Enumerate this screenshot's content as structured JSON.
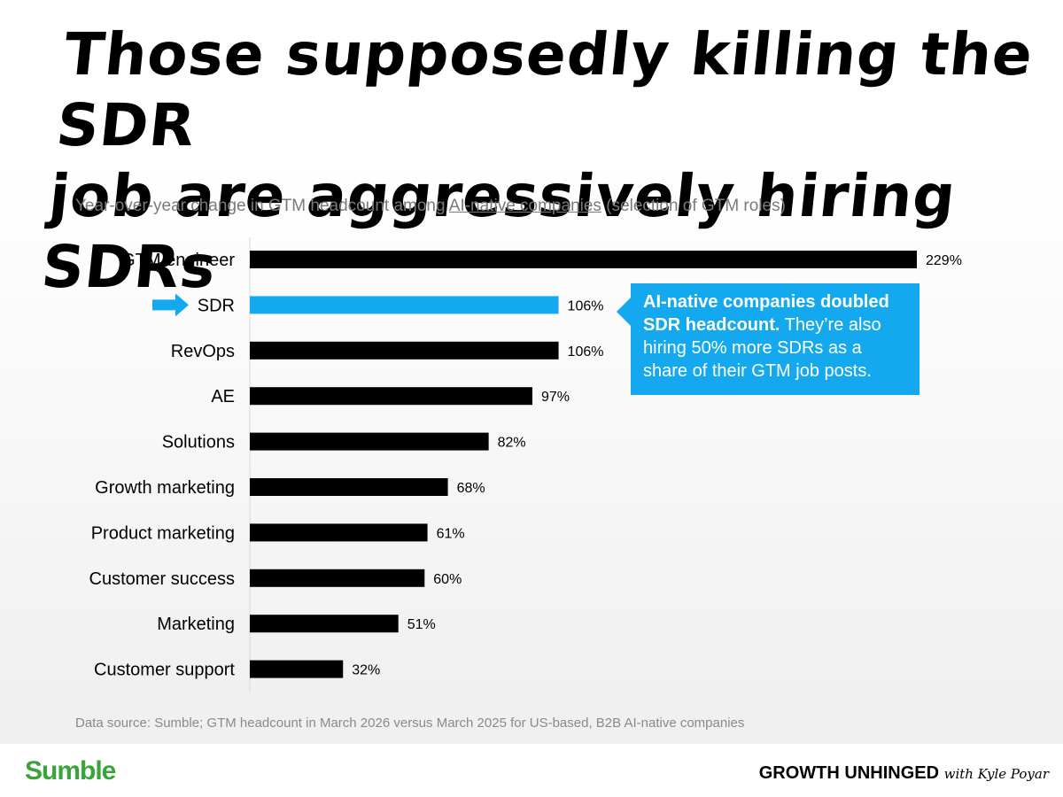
{
  "title_line1": "Those supposedly killing the SDR",
  "title_line2": "job are aggressively hiring SDRs",
  "subtitle": {
    "prefix": "Year-over-year change in GTM headcount among ",
    "link": "AI-native companies",
    "suffix": " (selection of GTM roles)"
  },
  "callout": {
    "bold": "AI-native companies doubled SDR headcount.",
    "text": " They’re also hiring 50% more SDRs as a share of their GTM job posts."
  },
  "source": "Data source: Sumble; GTM headcount in March 2026 versus March 2025 for US-based, B2B AI-native companies",
  "footer": {
    "left_logo": "Sumble",
    "right_logo_bold": "GROWTH UNHINGED",
    "right_logo_script": "with Kyle Poyar"
  },
  "colors": {
    "bar": "#000000",
    "highlight": "#14a9ee",
    "sumble_green": "#3aa33a"
  },
  "chart_data": {
    "type": "bar",
    "orientation": "horizontal",
    "categories": [
      "GTM engineer",
      "SDR",
      "RevOps",
      "AE",
      "Solutions",
      "Growth marketing",
      "Product marketing",
      "Customer success",
      "Marketing",
      "Customer support"
    ],
    "values": [
      229,
      106,
      106,
      97,
      82,
      68,
      61,
      60,
      51,
      32
    ],
    "value_labels": [
      "229%",
      "106%",
      "106%",
      "97%",
      "82%",
      "68%",
      "61%",
      "60%",
      "51%",
      "32%"
    ],
    "highlight_index": 1,
    "highlight_marker": "arrow-right-icon",
    "xlim": [
      0,
      229
    ],
    "unit": "%"
  }
}
